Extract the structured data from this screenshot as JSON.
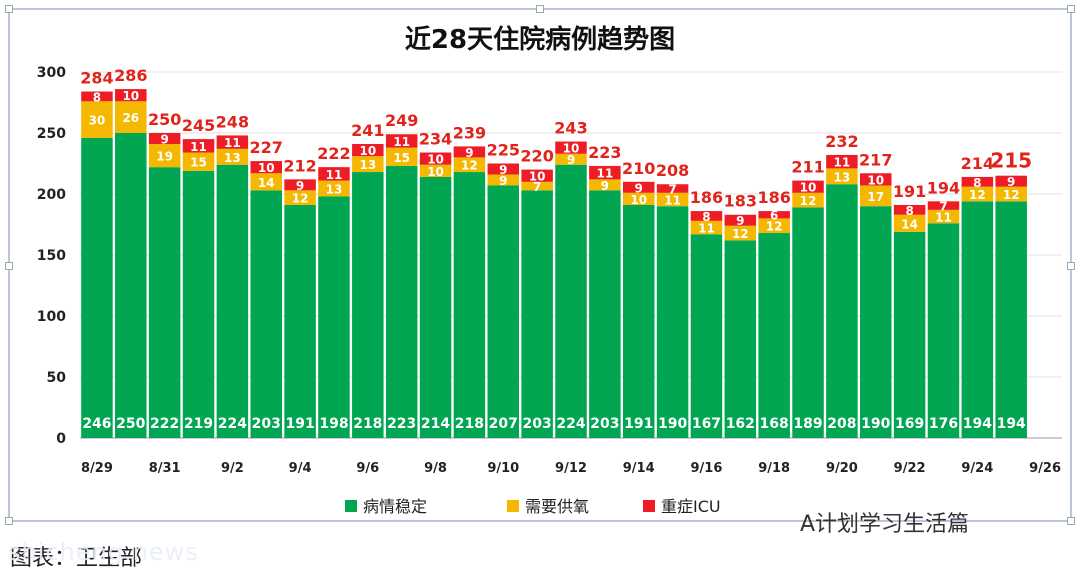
{
  "watermark": "A计划学习生活篇",
  "caption": "图表：卫生部",
  "site": "shicheng.news",
  "chart_data": {
    "type": "bar",
    "stacked": true,
    "title": "近28天住院病例趋势图",
    "ylim": [
      0,
      300
    ],
    "yticks": [
      0,
      50,
      100,
      150,
      200,
      250,
      300
    ],
    "grid": "horizontal",
    "legend_position": "bottom",
    "categories": [
      "8/29",
      "8/30",
      "8/31",
      "9/1",
      "9/2",
      "9/3",
      "9/4",
      "9/5",
      "9/6",
      "9/7",
      "9/8",
      "9/9",
      "9/10",
      "9/11",
      "9/12",
      "9/13",
      "9/14",
      "9/15",
      "9/16",
      "9/17",
      "9/18",
      "9/19",
      "9/20",
      "9/21",
      "9/22",
      "9/23",
      "9/24",
      "9/25",
      "9/26"
    ],
    "xtick_labels": [
      "8/29",
      "",
      "8/31",
      "",
      "9/2",
      "",
      "9/4",
      "",
      "9/6",
      "",
      "9/8",
      "",
      "9/10",
      "",
      "9/12",
      "",
      "9/14",
      "",
      "9/16",
      "",
      "9/18",
      "",
      "9/20",
      "",
      "9/22",
      "",
      "9/24",
      "",
      "9/26"
    ],
    "series": [
      {
        "name": "病情稳定",
        "color": "#00a651",
        "values": [
          246,
          250,
          222,
          219,
          224,
          203,
          191,
          198,
          218,
          223,
          214,
          218,
          207,
          203,
          224,
          203,
          191,
          190,
          167,
          162,
          168,
          189,
          208,
          190,
          169,
          176,
          194,
          194,
          null
        ]
      },
      {
        "name": "需要供氧",
        "color": "#f5b800",
        "values": [
          30,
          26,
          19,
          15,
          13,
          14,
          12,
          13,
          13,
          15,
          10,
          12,
          9,
          7,
          9,
          9,
          10,
          11,
          11,
          12,
          12,
          12,
          13,
          17,
          14,
          11,
          12,
          12,
          null
        ]
      },
      {
        "name": "重症ICU",
        "color": "#ee1c25",
        "values": [
          8,
          10,
          9,
          11,
          11,
          10,
          9,
          11,
          10,
          11,
          10,
          9,
          9,
          10,
          10,
          11,
          9,
          7,
          8,
          9,
          6,
          10,
          11,
          10,
          8,
          7,
          8,
          9,
          null
        ]
      }
    ],
    "totals": [
      284,
      286,
      250,
      245,
      248,
      227,
      212,
      222,
      241,
      249,
      234,
      239,
      225,
      220,
      243,
      223,
      210,
      208,
      186,
      183,
      186,
      211,
      232,
      217,
      191,
      194,
      214,
      215,
      null
    ],
    "segment_labels": {
      "病情稳定": [
        "246",
        "250",
        "222",
        "219",
        "224",
        "203",
        "191",
        "198",
        "218",
        "223",
        "214",
        "218",
        "207",
        "203",
        "224",
        "203",
        "191",
        "190",
        "167",
        "162",
        "168",
        "189",
        "208",
        "190",
        "169",
        "176",
        "194",
        "194",
        ""
      ],
      "需要供氧": [
        "30",
        "26",
        "19",
        "15",
        "13",
        "14",
        "12",
        "13",
        "13",
        "15",
        "10",
        "12",
        "9",
        "7",
        "9",
        "9",
        "10",
        "11",
        "11",
        "12",
        "12",
        "12",
        "13",
        "17",
        "14",
        "11",
        "12",
        "12",
        ""
      ],
      "重症ICU": [
        "8",
        "10",
        "9",
        "11",
        "11",
        "10",
        "9",
        "11",
        "10",
        "11",
        "10",
        "9",
        "9",
        "10",
        "10",
        "11",
        "9",
        "7",
        "8",
        "9",
        "6",
        "10",
        "11",
        "10",
        "8",
        "7",
        "8",
        "9",
        ""
      ]
    },
    "colors": {
      "label_total": "#e2231a",
      "label_inside": "#ffffff",
      "axis_text": "#222222"
    }
  }
}
